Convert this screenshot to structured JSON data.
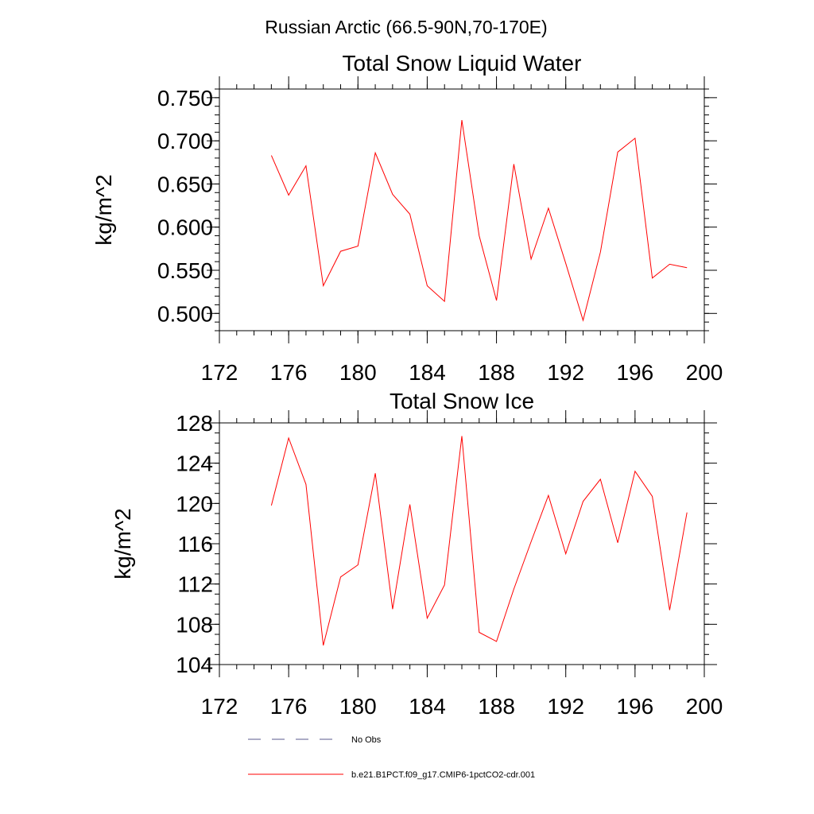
{
  "figure": {
    "title": "Russian Arctic (66.5-90N,70-170E)"
  },
  "chart_data": [
    {
      "type": "line",
      "title": "Total Snow Liquid Water",
      "xlabel": "",
      "ylabel": "kg/m^2",
      "xlim": [
        172,
        200
      ],
      "ylim": [
        0.48,
        0.76
      ],
      "x_ticks": [
        172,
        176,
        180,
        184,
        188,
        192,
        196,
        200
      ],
      "x_tick_labels": [
        "172",
        "176",
        "180",
        "184",
        "188",
        "192",
        "196",
        "200"
      ],
      "y_ticks": [
        0.5,
        0.55,
        0.6,
        0.65,
        0.7,
        0.75
      ],
      "y_tick_labels": [
        "0.500",
        "0.550",
        "0.600",
        "0.650",
        "0.700",
        "0.750"
      ],
      "x_minor_step": 1,
      "y_minor_step": 0.01,
      "series": [
        {
          "name": "b.e21.B1PCT.f09_g17.CMIP6-1pctCO2-cdr.001",
          "color": "#ff0000",
          "x": [
            175,
            176,
            177,
            178,
            179,
            180,
            181,
            182,
            183,
            184,
            185,
            186,
            187,
            188,
            189,
            190,
            191,
            192,
            193,
            194,
            195,
            196,
            197,
            198,
            199
          ],
          "y": [
            0.683,
            0.637,
            0.671,
            0.532,
            0.572,
            0.578,
            0.686,
            0.638,
            0.615,
            0.532,
            0.514,
            0.724,
            0.59,
            0.515,
            0.673,
            0.563,
            0.622,
            0.558,
            0.492,
            0.571,
            0.687,
            0.703,
            0.541,
            0.557,
            0.553
          ]
        }
      ]
    },
    {
      "type": "line",
      "title": "Total Snow Ice",
      "xlabel": "",
      "ylabel": "kg/m^2",
      "xlim": [
        172,
        200
      ],
      "ylim": [
        104,
        128
      ],
      "x_ticks": [
        172,
        176,
        180,
        184,
        188,
        192,
        196,
        200
      ],
      "x_tick_labels": [
        "172",
        "176",
        "180",
        "184",
        "188",
        "192",
        "196",
        "200"
      ],
      "y_ticks": [
        104,
        108,
        112,
        116,
        120,
        124,
        128
      ],
      "y_tick_labels": [
        "104",
        "108",
        "112",
        "116",
        "120",
        "124",
        "128"
      ],
      "x_minor_step": 1,
      "y_minor_step": 1,
      "series": [
        {
          "name": "b.e21.B1PCT.f09_g17.CMIP6-1pctCO2-cdr.001",
          "color": "#ff0000",
          "x": [
            175,
            176,
            177,
            178,
            179,
            180,
            181,
            182,
            183,
            184,
            185,
            186,
            187,
            188,
            189,
            190,
            191,
            192,
            193,
            194,
            195,
            196,
            197,
            198,
            199
          ],
          "y": [
            119.8,
            126.5,
            121.9,
            105.9,
            112.7,
            113.9,
            123.0,
            109.5,
            119.9,
            108.6,
            111.9,
            126.7,
            107.2,
            106.3,
            111.5,
            116.2,
            120.8,
            115.0,
            120.2,
            122.4,
            116.1,
            123.2,
            120.7,
            109.4,
            119.1
          ]
        }
      ]
    }
  ],
  "legend": {
    "placement": "bottom",
    "items": [
      {
        "label": "No Obs",
        "color": "#5a5a8c",
        "style": "dashed"
      },
      {
        "label": "b.e21.B1PCT.f09_g17.CMIP6-1pctCO2-cdr.001",
        "color": "#ff0000",
        "style": "solid"
      }
    ]
  }
}
